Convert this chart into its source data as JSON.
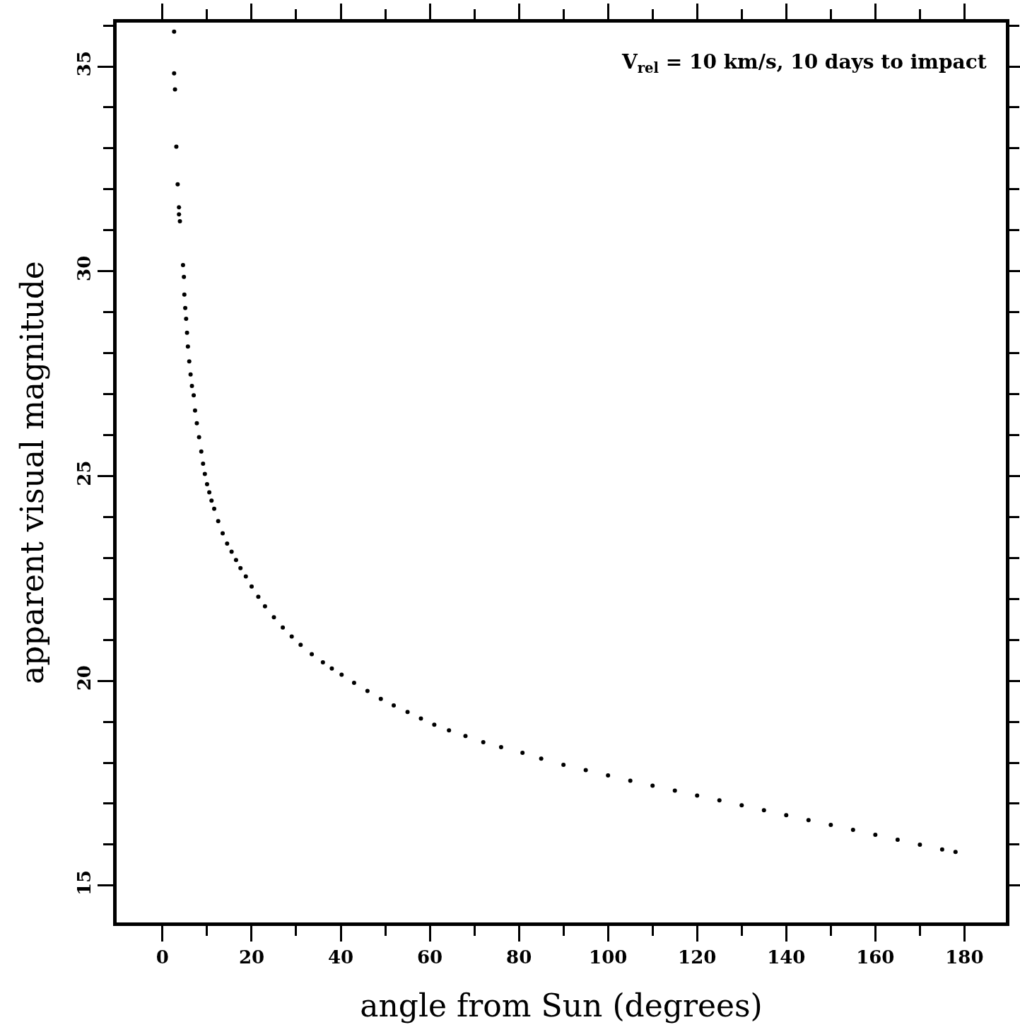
{
  "chart_data": {
    "type": "scatter",
    "xlabel": "angle from Sun (degrees)",
    "ylabel": "apparent visual magnitude",
    "annotations": [
      "V$_{rel}$ = 10 km/s, 10 days to impact"
    ],
    "marker": "circle",
    "color": "#000000",
    "x": [
      2.6,
      2.6,
      2.8,
      3.1,
      3.4,
      3.7,
      3.7,
      3.9,
      4.6,
      4.8,
      4.9,
      5.1,
      5.3,
      5.5,
      5.7,
      6.0,
      6.3,
      6.6,
      7.0,
      7.3,
      7.7,
      8.2,
      8.7,
      9.1,
      9.5,
      10.0,
      10.5,
      11.0,
      11.6,
      12.5,
      13.5,
      14.5,
      15.5,
      16.5,
      17.5,
      18.7,
      20,
      21.5,
      23,
      25,
      27,
      29,
      31,
      33.5,
      36,
      38,
      40.2,
      43,
      46,
      49,
      51.9,
      55,
      58,
      61,
      64.3,
      68,
      72,
      76,
      80.8,
      85,
      90,
      95,
      100,
      105,
      110,
      115,
      120,
      125,
      130,
      135,
      140,
      145,
      150,
      155,
      160,
      165,
      170,
      175,
      178
    ],
    "values": [
      35.85,
      34.83,
      34.44,
      33.04,
      32.12,
      31.56,
      31.39,
      31.22,
      30.15,
      29.86,
      29.43,
      29.1,
      28.84,
      28.5,
      28.16,
      27.8,
      27.48,
      27.2,
      26.97,
      26.6,
      26.29,
      25.95,
      25.6,
      25.3,
      25.05,
      24.8,
      24.6,
      24.4,
      24.2,
      23.9,
      23.6,
      23.35,
      23.15,
      22.95,
      22.75,
      22.55,
      22.3,
      22.05,
      21.82,
      21.55,
      21.3,
      21.08,
      20.88,
      20.65,
      20.45,
      20.3,
      20.15,
      19.95,
      19.75,
      19.56,
      19.4,
      19.24,
      19.08,
      18.93,
      18.79,
      18.65,
      18.5,
      18.38,
      18.24,
      18.1,
      17.95,
      17.82,
      17.69,
      17.56,
      17.44,
      17.32,
      17.2,
      17.08,
      16.96,
      16.84,
      16.72,
      16.6,
      16.48,
      16.36,
      16.24,
      16.12,
      16.0,
      15.88,
      15.82
    ],
    "xlim": [
      -10.3,
      189.3
    ],
    "xticks": [
      0,
      {
        "value": 10,
        "label": null
      },
      20,
      {
        "value": 30,
        "label": null
      },
      40,
      {
        "value": 50,
        "label": null
      },
      60,
      {
        "value": 70,
        "label": null
      },
      80,
      {
        "value": 90,
        "label": null
      },
      100,
      {
        "value": 110,
        "label": null
      },
      120,
      {
        "value": 130,
        "label": null
      },
      140,
      {
        "value": 150,
        "label": null
      },
      160,
      {
        "value": 170,
        "label": null
      },
      180
    ],
    "ylim": [
      14.1,
      36.07
    ],
    "yticks": [
      15,
      {
        "value": 16,
        "label": null
      },
      {
        "value": 17,
        "label": null
      },
      {
        "value": 18,
        "label": null
      },
      {
        "value": 19,
        "label": null
      },
      20,
      {
        "value": 21,
        "label": null
      },
      {
        "value": 22,
        "label": null
      },
      {
        "value": 23,
        "label": null
      },
      {
        "value": 24,
        "label": null
      },
      25,
      {
        "value": 26,
        "label": null
      },
      {
        "value": 27,
        "label": null
      },
      {
        "value": 28,
        "label": null
      },
      {
        "value": 29,
        "label": null
      },
      30,
      {
        "value": 31,
        "label": null
      },
      {
        "value": 32,
        "label": null
      },
      {
        "value": 33,
        "label": null
      },
      {
        "value": 34,
        "label": null
      },
      35,
      {
        "value": 36,
        "label": null
      }
    ],
    "grid": false
  }
}
